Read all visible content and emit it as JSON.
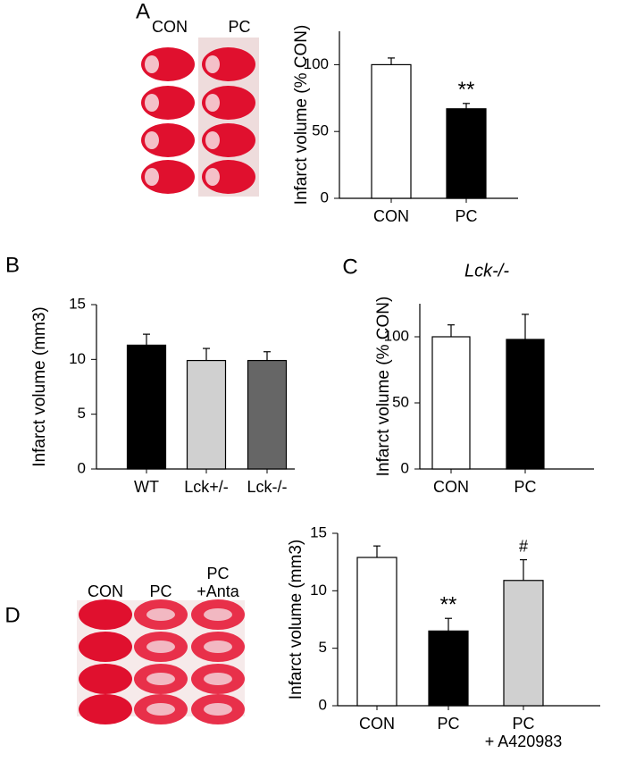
{
  "panel_labels": [
    "A",
    "B",
    "C",
    "D"
  ],
  "image_labels": {
    "a": [
      "CON",
      "PC"
    ],
    "d": [
      "CON",
      "PC",
      "PC\n+Anta"
    ]
  },
  "chart_data": [
    {
      "type": "bar",
      "ylabel": "Infarct volume (% CON)",
      "categories": [
        "CON",
        "PC"
      ],
      "values": [
        100,
        67
      ],
      "errors": [
        5,
        4
      ],
      "colors": [
        "#ffffff",
        "#000000"
      ],
      "ylim": [
        0,
        125
      ],
      "yticks": [
        0,
        50,
        100
      ],
      "annotations": [
        {
          "text": "**",
          "category": "PC"
        }
      ]
    },
    {
      "type": "bar",
      "ylabel": "Infarct volume (mm3)",
      "categories": [
        "WT",
        "Lck+/-",
        "Lck-/-"
      ],
      "values": [
        11.3,
        9.9,
        9.9
      ],
      "errors": [
        1.0,
        1.1,
        0.8
      ],
      "colors": [
        "#000000",
        "#d0d0d0",
        "#666666"
      ],
      "ylim": [
        0,
        15
      ],
      "yticks": [
        0,
        5,
        10,
        15
      ],
      "annotations": []
    },
    {
      "type": "bar",
      "title": "Lck-/-",
      "ylabel": "Infarct volume (% CON)",
      "categories": [
        "CON",
        "PC"
      ],
      "values": [
        100,
        98
      ],
      "errors": [
        9,
        19
      ],
      "colors": [
        "#ffffff",
        "#000000"
      ],
      "ylim": [
        0,
        125
      ],
      "yticks": [
        0,
        50,
        100
      ],
      "annotations": []
    },
    {
      "type": "bar",
      "ylabel": "Infarct volume (mm3)",
      "categories": [
        "CON",
        "PC",
        "PC\n+ A420983"
      ],
      "values": [
        12.9,
        6.5,
        10.9
      ],
      "errors": [
        1.0,
        1.1,
        1.8
      ],
      "colors": [
        "#ffffff",
        "#000000",
        "#d0d0d0"
      ],
      "ylim": [
        0,
        15
      ],
      "yticks": [
        0,
        5,
        10,
        15
      ],
      "annotations": [
        {
          "text": "**",
          "category": "PC"
        },
        {
          "text": "#",
          "category": "PC\n+ A420983"
        }
      ]
    }
  ]
}
